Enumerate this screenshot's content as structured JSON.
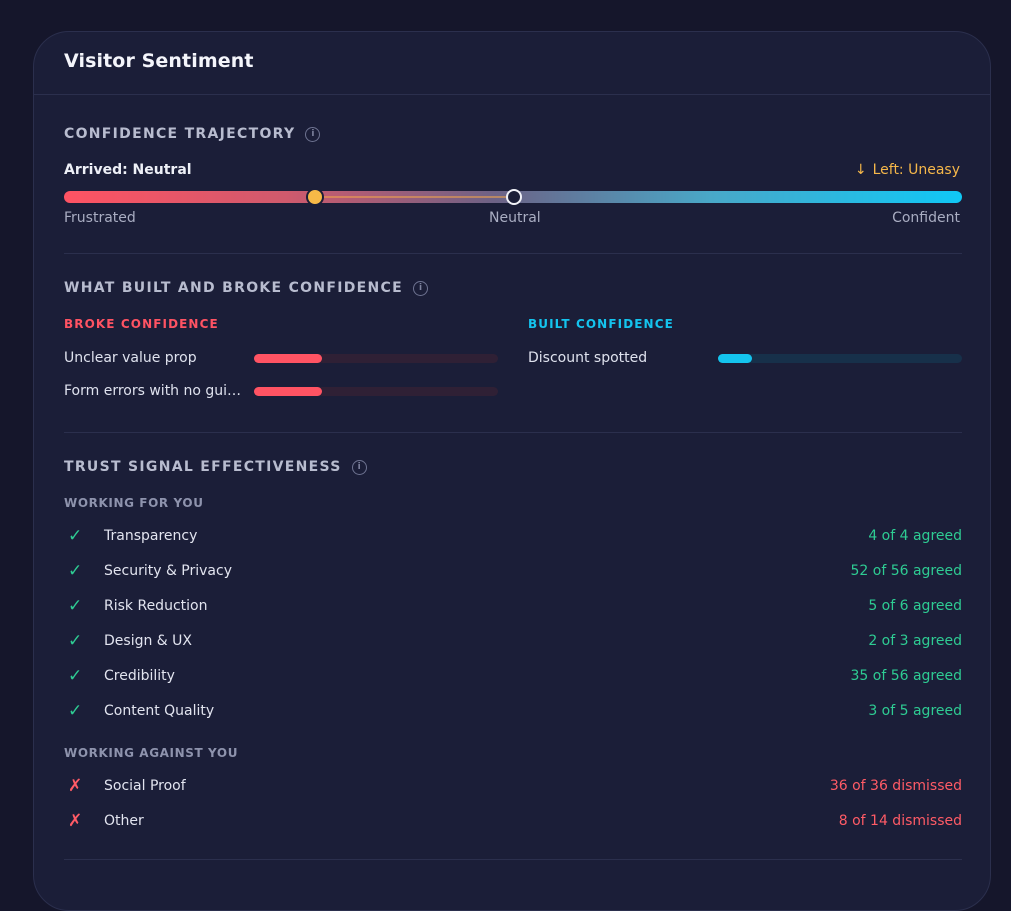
{
  "card": {
    "title": "Visitor Sentiment"
  },
  "trajectory": {
    "title": "CONFIDENCE TRAJECTORY",
    "info_icon": "i",
    "arrived": "Arrived: Neutral",
    "left_arrow": "↓",
    "left": "Left: Uneasy",
    "scale": {
      "low": "Frustrated",
      "mid": "Neutral",
      "high": "Confident"
    },
    "arrived_position": 0.5,
    "left_position": 0.28,
    "colors": {
      "frustrated": "#ff5363",
      "confident": "#10c8f6",
      "marker": "#f7b947"
    }
  },
  "factors": {
    "title": "WHAT BUILT AND BROKE CONFIDENCE",
    "info_icon": "i",
    "broke": {
      "heading": "BROKE CONFIDENCE",
      "color": "#ff5363",
      "items": [
        {
          "label": "Unclear value prop",
          "level": 0.28
        },
        {
          "label": "Form errors with no guidance",
          "level": 0.28
        }
      ]
    },
    "built": {
      "heading": "BUILT CONFIDENCE",
      "color": "#14c4ee",
      "items": [
        {
          "label": "Discount spotted",
          "level": 0.14
        }
      ]
    }
  },
  "trust": {
    "title": "TRUST SIGNAL EFFECTIVENESS",
    "info_icon": "i",
    "working_for": {
      "label": "WORKING FOR YOU",
      "icon": "✓",
      "items": [
        {
          "name": "Transparency",
          "count": "4 of 4 agreed"
        },
        {
          "name": "Security & Privacy",
          "count": "52 of 56 agreed"
        },
        {
          "name": "Risk Reduction",
          "count": "5 of 6 agreed"
        },
        {
          "name": "Design & UX",
          "count": "2 of 3 agreed"
        },
        {
          "name": "Credibility",
          "count": "35 of 56 agreed"
        },
        {
          "name": "Content Quality",
          "count": "3 of 5 agreed"
        }
      ]
    },
    "working_against": {
      "label": "WORKING AGAINST YOU",
      "icon": "✗",
      "items": [
        {
          "name": "Social Proof",
          "count": "36 of 36 dismissed"
        },
        {
          "name": "Other",
          "count": "8 of 14 dismissed"
        }
      ]
    }
  }
}
